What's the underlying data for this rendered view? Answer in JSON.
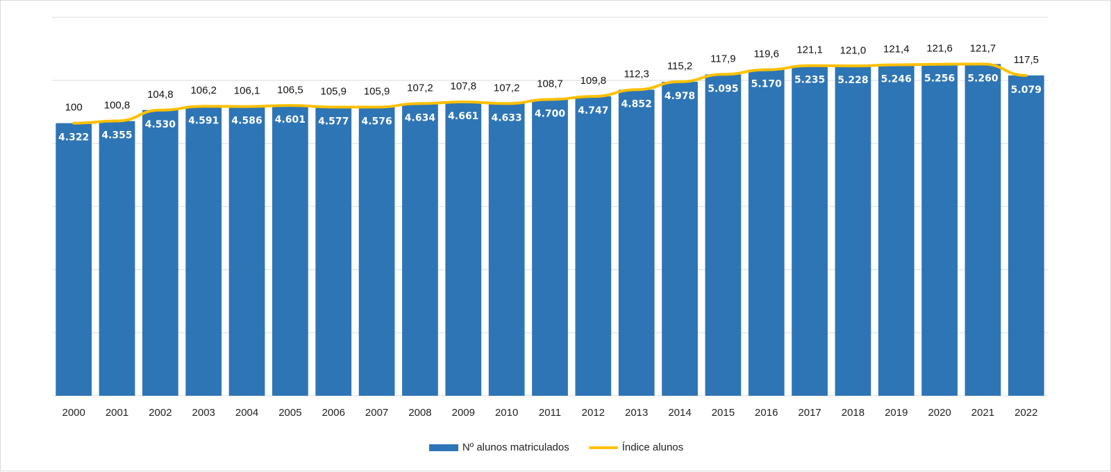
{
  "colors": {
    "bars": "#2e75b6",
    "line": "#ffc000",
    "grid": "#d9d9d9"
  },
  "chart_data": {
    "type": "bar",
    "title": "",
    "xlabel": "",
    "ylabel": "",
    "grid": true,
    "legend_position": "bottom",
    "categories": [
      "2000",
      "2001",
      "2002",
      "2003",
      "2004",
      "2005",
      "2006",
      "2007",
      "2008",
      "2009",
      "2010",
      "2011",
      "2012",
      "2013",
      "2014",
      "2015",
      "2016",
      "2017",
      "2018",
      "2019",
      "2020",
      "2021",
      "2022"
    ],
    "series": [
      {
        "name": "Nº alunos matriculados",
        "type": "bar",
        "values": [
          4322,
          4355,
          4530,
          4591,
          4586,
          4601,
          4577,
          4576,
          4634,
          4661,
          4633,
          4700,
          4747,
          4852,
          4978,
          5095,
          5170,
          5235,
          5228,
          5246,
          5256,
          5260,
          5079
        ],
        "labels": [
          "4.322",
          "4.355",
          "4.530",
          "4.591",
          "4.586",
          "4.601",
          "4.577",
          "4.576",
          "4.634",
          "4.661",
          "4.633",
          "4.700",
          "4.747",
          "4.852",
          "4.978",
          "5.095",
          "5.170",
          "5.235",
          "5.228",
          "5.246",
          "5.256",
          "5.260",
          "5.079"
        ],
        "ylim": [
          0,
          6000
        ]
      },
      {
        "name": "Índice alunos",
        "type": "line",
        "values": [
          100,
          100.8,
          104.8,
          106.2,
          106.1,
          106.5,
          105.9,
          105.9,
          107.2,
          107.8,
          107.2,
          108.7,
          109.8,
          112.3,
          115.2,
          117.9,
          119.6,
          121.1,
          121.0,
          121.4,
          121.6,
          121.7,
          117.5
        ],
        "labels": [
          "100",
          "100,8",
          "104,8",
          "106,2",
          "106,1",
          "106,5",
          "105,9",
          "105,9",
          "107,2",
          "107,8",
          "107,2",
          "108,7",
          "109,8",
          "112,3",
          "115,2",
          "117,9",
          "119,6",
          "121,1",
          "121,0",
          "121,4",
          "121,6",
          "121,7",
          "117,5"
        ]
      }
    ]
  }
}
